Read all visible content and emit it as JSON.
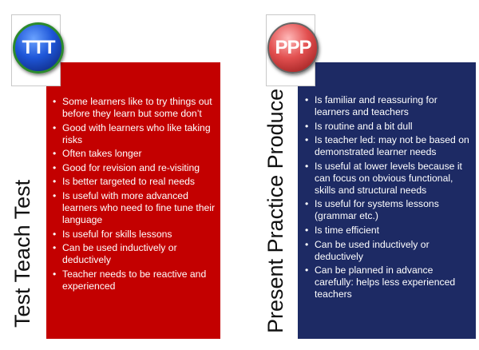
{
  "ttt": {
    "icon_text": "TTT",
    "vertical_label": "Test Teach Test",
    "bullets": [
      "Some learners like to try things out before they learn but some don’t",
      "Good with learners who like taking risks",
      "Often takes longer",
      "Good for revision and re-visiting",
      "Is better targeted to real needs",
      "Is useful with more advanced learners who need to fine tune their language",
      "Is useful for skills lessons",
      "Can be used inductively or deductively",
      "Teacher needs to be reactive and experienced"
    ],
    "panel_color": "#c30000"
  },
  "ppp": {
    "icon_text": "PPP",
    "vertical_label": "Present Practice Produce",
    "bullets": [
      "Is familiar and reassuring for learners and teachers",
      "Is routine and a bit dull",
      "Is teacher led: may not be based on demonstrated learner needs",
      "Is useful at lower levels because it can focus on obvious functional, skills and structural needs",
      "Is useful for systems lessons (grammar etc.)",
      "Is time efficient",
      "Can be used inductively or deductively",
      "Can be planned in advance carefully: helps less experienced teachers"
    ],
    "panel_color": "#1d2a64"
  }
}
